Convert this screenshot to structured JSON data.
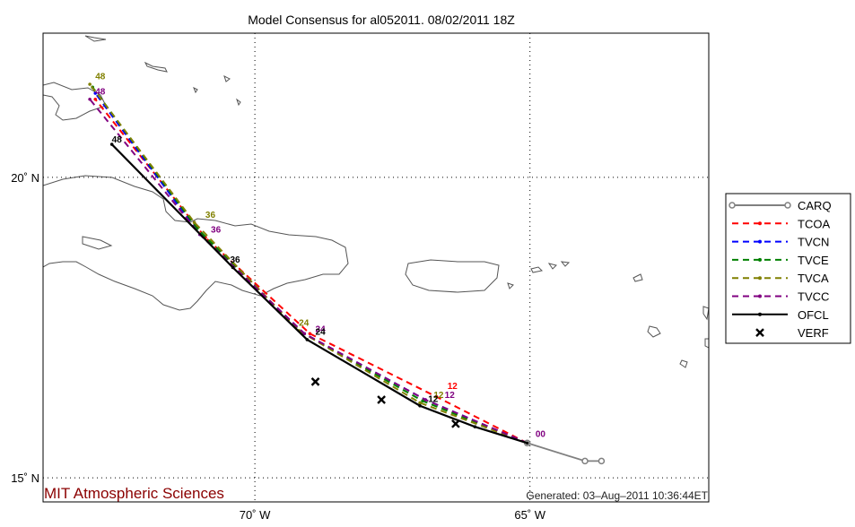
{
  "title": "Model Consensus for al052011. 08/02/2011 18Z",
  "credit": "MIT Atmospheric Sciences",
  "generated": "Generated: 03–Aug–2011 10:36:44ET",
  "chart_data": {
    "type": "line",
    "title": "Model Consensus for al052011. 08/02/2011 18Z",
    "xaxis": {
      "min": -73.85,
      "max": -61.75,
      "ticks": [
        -70,
        -65
      ],
      "tick_labels": [
        "70˚ W",
        "65˚ W"
      ]
    },
    "yaxis": {
      "min": 14.6,
      "max": 22.4,
      "ticks": [
        15,
        20
      ],
      "tick_labels": [
        "15˚ N",
        "20˚ N"
      ]
    },
    "grid": true,
    "legend_position": "right",
    "series": [
      {
        "name": "CARQ",
        "color": "#808080",
        "dash": "solid",
        "marker": "circle",
        "lon": [
          -63.7,
          -64.0,
          -65.05
        ],
        "lat": [
          15.28,
          15.28,
          15.58
        ],
        "labels": []
      },
      {
        "name": "TCOA",
        "color": "#ff0000",
        "dash": "dashed",
        "marker": "dot",
        "lon": [
          -65.05,
          -66.7,
          -69.0,
          -70.9,
          -72.9
        ],
        "lat": [
          15.58,
          16.35,
          17.4,
          19.0,
          21.3
        ],
        "labels": [
          {
            "text": "12",
            "lon": -66.5,
            "lat": 16.45
          }
        ]
      },
      {
        "name": "TVCN",
        "color": "#0000ff",
        "dash": "dashed",
        "marker": "dot",
        "lon": [
          -65.05,
          -66.9,
          -69.1,
          -71.0,
          -72.9
        ],
        "lat": [
          15.58,
          16.3,
          17.4,
          19.05,
          21.4
        ],
        "labels": []
      },
      {
        "name": "TVCE",
        "color": "#008000",
        "dash": "dashed",
        "marker": "dot",
        "lon": [
          -65.05,
          -66.95,
          -69.15,
          -71.05,
          -72.95
        ],
        "lat": [
          15.58,
          16.28,
          17.42,
          19.15,
          21.5
        ],
        "labels": []
      },
      {
        "name": "TVCA",
        "color": "#808000",
        "dash": "dashed",
        "marker": "dot",
        "lon": [
          -65.05,
          -67.0,
          -69.2,
          -71.1,
          -73.0
        ],
        "lat": [
          15.58,
          16.25,
          17.45,
          19.25,
          21.55
        ],
        "labels": [
          {
            "text": "12",
            "lon": -66.75,
            "lat": 16.3
          },
          {
            "text": "24",
            "lon": -69.2,
            "lat": 17.5
          },
          {
            "text": "36",
            "lon": -70.9,
            "lat": 19.3
          },
          {
            "text": "48",
            "lon": -72.9,
            "lat": 21.6
          }
        ]
      },
      {
        "name": "TVCC",
        "color": "#800080",
        "dash": "dashed",
        "marker": "dot",
        "lon": [
          -65.05,
          -66.9,
          -69.1,
          -71.0,
          -73.0
        ],
        "lat": [
          15.58,
          16.3,
          17.4,
          19.05,
          21.3
        ],
        "labels": [
          {
            "text": "00",
            "lon": -64.9,
            "lat": 15.65
          },
          {
            "text": "12",
            "lon": -66.55,
            "lat": 16.3
          },
          {
            "text": "24",
            "lon": -68.9,
            "lat": 17.4
          },
          {
            "text": "36",
            "lon": -70.8,
            "lat": 19.05
          },
          {
            "text": "48",
            "lon": -72.9,
            "lat": 21.35
          }
        ]
      },
      {
        "name": "OFCL",
        "color": "#000000",
        "dash": "solid",
        "marker": "dot",
        "lon": [
          -65.05,
          -66.0,
          -67.0,
          -69.05,
          -70.4,
          -72.6
        ],
        "lat": [
          15.58,
          15.85,
          16.2,
          17.3,
          18.5,
          20.55
        ],
        "labels": [
          {
            "text": "12",
            "lon": -66.85,
            "lat": 16.23
          },
          {
            "text": "24",
            "lon": -68.9,
            "lat": 17.35
          },
          {
            "text": "36",
            "lon": -70.45,
            "lat": 18.55
          },
          {
            "text": "48",
            "lon": -72.6,
            "lat": 20.55
          }
        ]
      }
    ],
    "verification": {
      "name": "VERF",
      "lon": [
        -68.9,
        -67.7,
        -66.35
      ],
      "lat": [
        16.6,
        16.3,
        15.9
      ]
    }
  }
}
